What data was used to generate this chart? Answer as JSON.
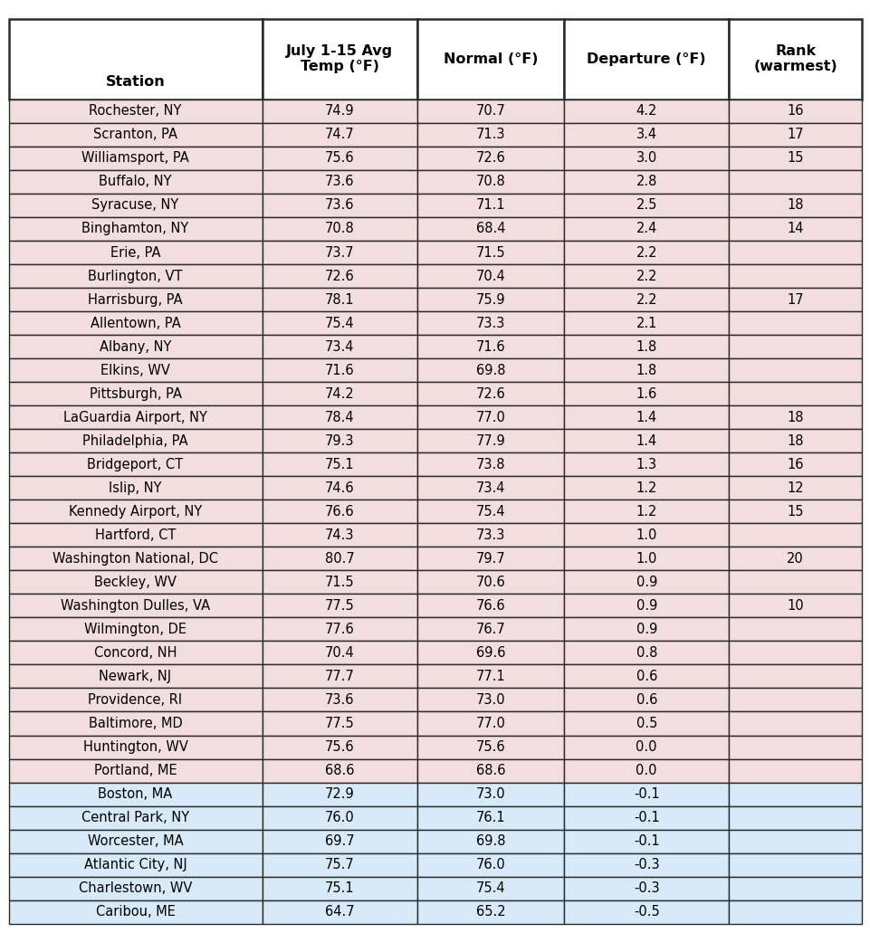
{
  "columns": [
    "Station",
    "July 1-15 Avg\nTemp (°F)",
    "Normal (°F)",
    "Departure (°F)",
    "Rank\n(warmest)"
  ],
  "col_aligns": [
    "center",
    "center",
    "center",
    "center",
    "center"
  ],
  "rows": [
    [
      "Rochester, NY",
      "74.9",
      "70.7",
      "4.2",
      "16"
    ],
    [
      "Scranton, PA",
      "74.7",
      "71.3",
      "3.4",
      "17"
    ],
    [
      "Williamsport, PA",
      "75.6",
      "72.6",
      "3.0",
      "15"
    ],
    [
      "Buffalo, NY",
      "73.6",
      "70.8",
      "2.8",
      ""
    ],
    [
      "Syracuse, NY",
      "73.6",
      "71.1",
      "2.5",
      "18"
    ],
    [
      "Binghamton, NY",
      "70.8",
      "68.4",
      "2.4",
      "14"
    ],
    [
      "Erie, PA",
      "73.7",
      "71.5",
      "2.2",
      ""
    ],
    [
      "Burlington, VT",
      "72.6",
      "70.4",
      "2.2",
      ""
    ],
    [
      "Harrisburg, PA",
      "78.1",
      "75.9",
      "2.2",
      "17"
    ],
    [
      "Allentown, PA",
      "75.4",
      "73.3",
      "2.1",
      ""
    ],
    [
      "Albany, NY",
      "73.4",
      "71.6",
      "1.8",
      ""
    ],
    [
      "Elkins, WV",
      "71.6",
      "69.8",
      "1.8",
      ""
    ],
    [
      "Pittsburgh, PA",
      "74.2",
      "72.6",
      "1.6",
      ""
    ],
    [
      "LaGuardia Airport, NY",
      "78.4",
      "77.0",
      "1.4",
      "18"
    ],
    [
      "Philadelphia, PA",
      "79.3",
      "77.9",
      "1.4",
      "18"
    ],
    [
      "Bridgeport, CT",
      "75.1",
      "73.8",
      "1.3",
      "16"
    ],
    [
      "Islip, NY",
      "74.6",
      "73.4",
      "1.2",
      "12"
    ],
    [
      "Kennedy Airport, NY",
      "76.6",
      "75.4",
      "1.2",
      "15"
    ],
    [
      "Hartford, CT",
      "74.3",
      "73.3",
      "1.0",
      ""
    ],
    [
      "Washington National, DC",
      "80.7",
      "79.7",
      "1.0",
      "20"
    ],
    [
      "Beckley, WV",
      "71.5",
      "70.6",
      "0.9",
      ""
    ],
    [
      "Washington Dulles, VA",
      "77.5",
      "76.6",
      "0.9",
      "10"
    ],
    [
      "Wilmington, DE",
      "77.6",
      "76.7",
      "0.9",
      ""
    ],
    [
      "Concord, NH",
      "70.4",
      "69.6",
      "0.8",
      ""
    ],
    [
      "Newark, NJ",
      "77.7",
      "77.1",
      "0.6",
      ""
    ],
    [
      "Providence, RI",
      "73.6",
      "73.0",
      "0.6",
      ""
    ],
    [
      "Baltimore, MD",
      "77.5",
      "77.0",
      "0.5",
      ""
    ],
    [
      "Huntington, WV",
      "75.6",
      "75.6",
      "0.0",
      ""
    ],
    [
      "Portland, ME",
      "68.6",
      "68.6",
      "0.0",
      ""
    ],
    [
      "Boston, MA",
      "72.9",
      "73.0",
      "-0.1",
      ""
    ],
    [
      "Central Park, NY",
      "76.0",
      "76.1",
      "-0.1",
      ""
    ],
    [
      "Worcester, MA",
      "69.7",
      "69.8",
      "-0.1",
      ""
    ],
    [
      "Atlantic City, NJ",
      "75.7",
      "76.0",
      "-0.3",
      ""
    ],
    [
      "Charlestown, WV",
      "75.1",
      "75.4",
      "-0.3",
      ""
    ],
    [
      "Caribou, ME",
      "64.7",
      "65.2",
      "-0.5",
      ""
    ]
  ],
  "pink_color": "#f2dede",
  "blue_color": "#d6eaf8",
  "header_bg": "#ffffff",
  "border_color": "#2b2b2b",
  "fig_width": 9.62,
  "fig_height": 10.31,
  "dpi": 100
}
